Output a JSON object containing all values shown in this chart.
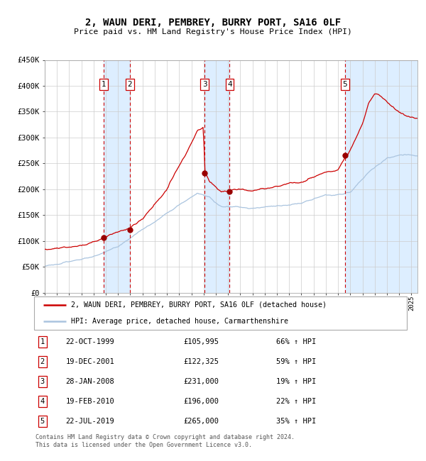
{
  "title": "2, WAUN DERI, PEMBREY, BURRY PORT, SA16 0LF",
  "subtitle": "Price paid vs. HM Land Registry's House Price Index (HPI)",
  "legend_line1": "2, WAUN DERI, PEMBREY, BURRY PORT, SA16 0LF (detached house)",
  "legend_line2": "HPI: Average price, detached house, Carmarthenshire",
  "footer1": "Contains HM Land Registry data © Crown copyright and database right 2024.",
  "footer2": "This data is licensed under the Open Government Licence v3.0.",
  "sales": [
    {
      "num": 1,
      "date": "22-OCT-1999",
      "price": 105995,
      "hpi_pct": "66%",
      "year": 1999.81
    },
    {
      "num": 2,
      "date": "19-DEC-2001",
      "price": 122325,
      "hpi_pct": "59%",
      "year": 2001.97
    },
    {
      "num": 3,
      "date": "28-JAN-2008",
      "price": 231000,
      "hpi_pct": "19%",
      "year": 2008.08
    },
    {
      "num": 4,
      "date": "19-FEB-2010",
      "price": 196000,
      "hpi_pct": "22%",
      "year": 2010.13
    },
    {
      "num": 5,
      "date": "22-JUL-2019",
      "price": 265000,
      "hpi_pct": "35%",
      "year": 2019.56
    }
  ],
  "ylim": [
    0,
    450000
  ],
  "xlim_start": 1995.0,
  "xlim_end": 2025.5,
  "hpi_color": "#aac4df",
  "price_color": "#cc0000",
  "dot_color": "#990000",
  "vline_color": "#cc0000",
  "shade_color": "#ddeeff",
  "grid_color": "#cccccc",
  "background_color": "#ffffff"
}
